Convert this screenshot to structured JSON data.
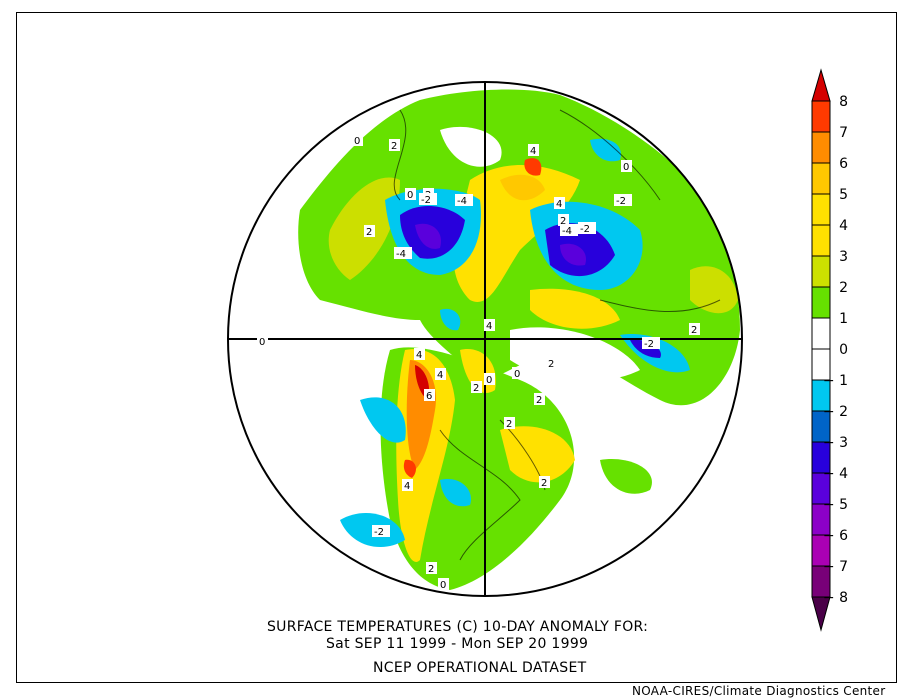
{
  "title": {
    "line1": "SURFACE TEMPERATURES (C)   10-DAY ANOMALY FOR:",
    "line2": "Sat SEP 11 1999 - Mon SEP 20 1999",
    "line3": "NCEP OPERATIONAL DATASET"
  },
  "credit": "NOAA-CIRES/Climate Diagnostics Center",
  "colorbar": {
    "labels": [
      "8",
      "7",
      "6",
      "5",
      "4",
      "3",
      "2",
      "1",
      "0",
      "-1",
      "-2",
      "-3",
      "-4",
      "-5",
      "-6",
      "-7",
      "-8"
    ],
    "colors": [
      "#d40000",
      "#ff3a00",
      "#ff8c00",
      "#ffc800",
      "#ffe100",
      "#ffe100",
      "#cce100",
      "#66e100",
      "#ffffff",
      "#ffffff",
      "#00c8f0",
      "#0064c8",
      "#2800dc",
      "#5a00dc",
      "#8c00c8",
      "#aa00b4",
      "#780078",
      "#4a0048"
    ]
  },
  "contour_labels": [
    "0",
    "2",
    "0",
    "2",
    "-4",
    "-2",
    "-4",
    "4",
    "4",
    "2",
    "-2",
    "-4",
    "0",
    "-2",
    "0",
    "2",
    "4",
    "4",
    "2",
    "-2",
    "0",
    "4",
    "6",
    "2",
    "0",
    "2",
    "2",
    "4",
    "2",
    "-2",
    "2",
    "0",
    "2"
  ]
}
